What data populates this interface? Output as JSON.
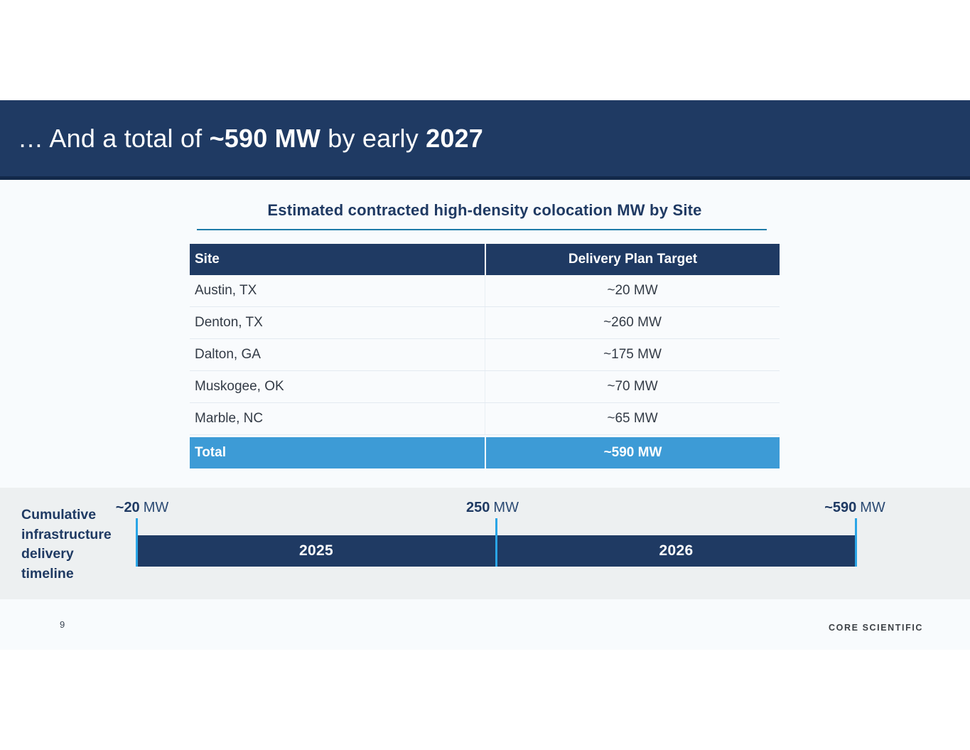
{
  "slide": {
    "header": {
      "title_prefix": "… And a total of ",
      "title_bold_mw": "~590 MW",
      "title_mid": " by early ",
      "title_bold_year": "2027"
    },
    "table": {
      "title": "Estimated contracted high-density colocation MW by Site",
      "columns": {
        "site": "Site",
        "target": "Delivery Plan Target"
      },
      "rows": [
        {
          "site": "Austin, TX",
          "target": "~20 MW"
        },
        {
          "site": "Denton, TX",
          "target": "~260 MW"
        },
        {
          "site": "Dalton, GA",
          "target": "~175 MW"
        },
        {
          "site": "Muskogee, OK",
          "target": "~70 MW"
        },
        {
          "site": "Marble, NC",
          "target": "~65 MW"
        }
      ],
      "total": {
        "site": "Total",
        "target": "~590 MW"
      }
    },
    "timeline": {
      "label_lines": [
        "Cumulative",
        "infrastructure",
        "delivery",
        "timeline"
      ],
      "milestones": [
        {
          "value": "~20",
          "unit": "MW"
        },
        {
          "value": "250",
          "unit": "MW"
        },
        {
          "value": "~590",
          "unit": "MW"
        }
      ],
      "segments": [
        {
          "year": "2025"
        },
        {
          "year": "2026"
        }
      ]
    },
    "footer": {
      "page_number": "9",
      "brand": "CORE SCIENTIFIC"
    }
  },
  "colors": {
    "header_navy": "#1f3a63",
    "header_bottom_edge": "#13294a",
    "total_row_blue": "#3d9bd6",
    "tick_blue": "#2aa5e6",
    "title_underline": "#1e7ca8",
    "strip_gray": "#edf0f1",
    "slide_bg": "#f8fbfd"
  }
}
